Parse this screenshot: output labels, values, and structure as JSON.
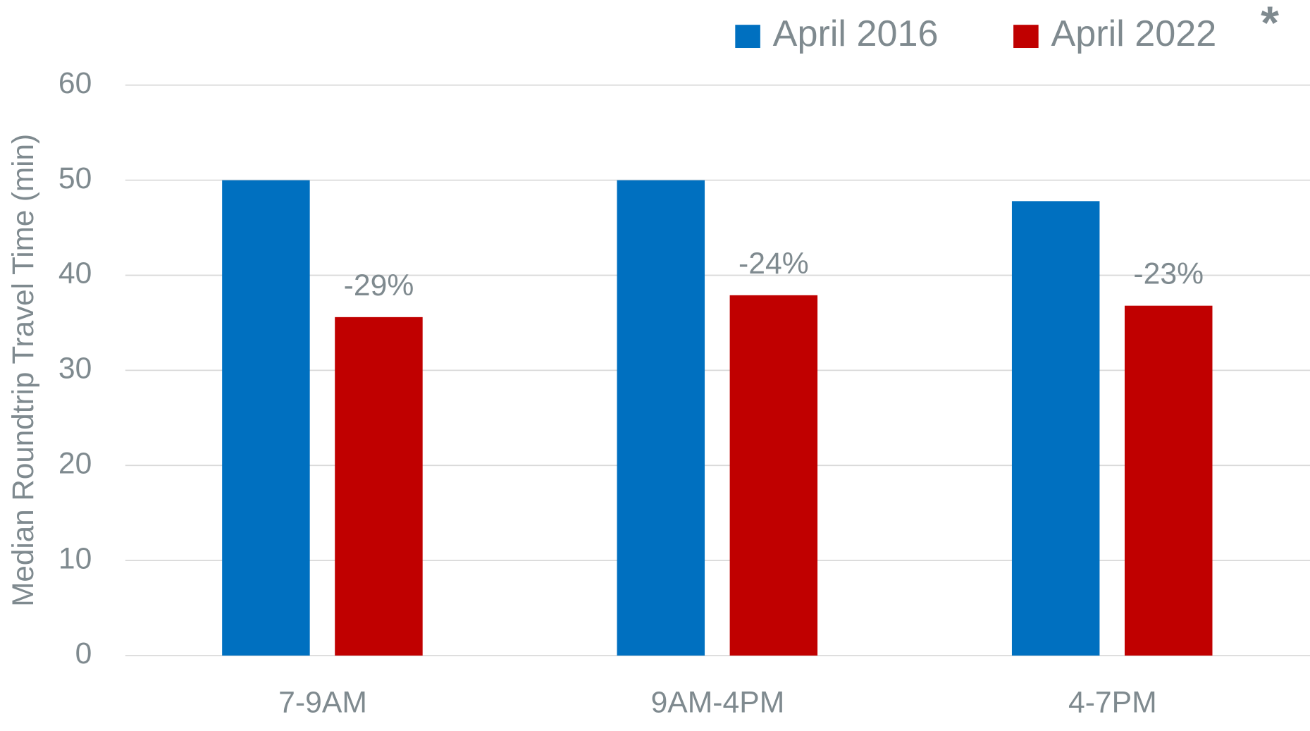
{
  "chart_data": {
    "type": "bar",
    "ylabel": "Median Roundtrip Travel Time (min)",
    "categories": [
      "7-9AM",
      "9AM-4PM",
      "4-7PM"
    ],
    "series": [
      {
        "name": "April 2016",
        "color": "#0070c0",
        "values": [
          50,
          50,
          47.8
        ]
      },
      {
        "name": "April 2022",
        "color": "#c00000",
        "values": [
          35.6,
          37.9,
          36.8
        ]
      }
    ],
    "annotations": [
      "-29%",
      "-24%",
      "-23%"
    ],
    "legend_note": "*",
    "ylim": [
      0,
      60
    ],
    "yticks": [
      0,
      10,
      20,
      30,
      40,
      50,
      60
    ],
    "grid": true,
    "legend": "top-right"
  }
}
